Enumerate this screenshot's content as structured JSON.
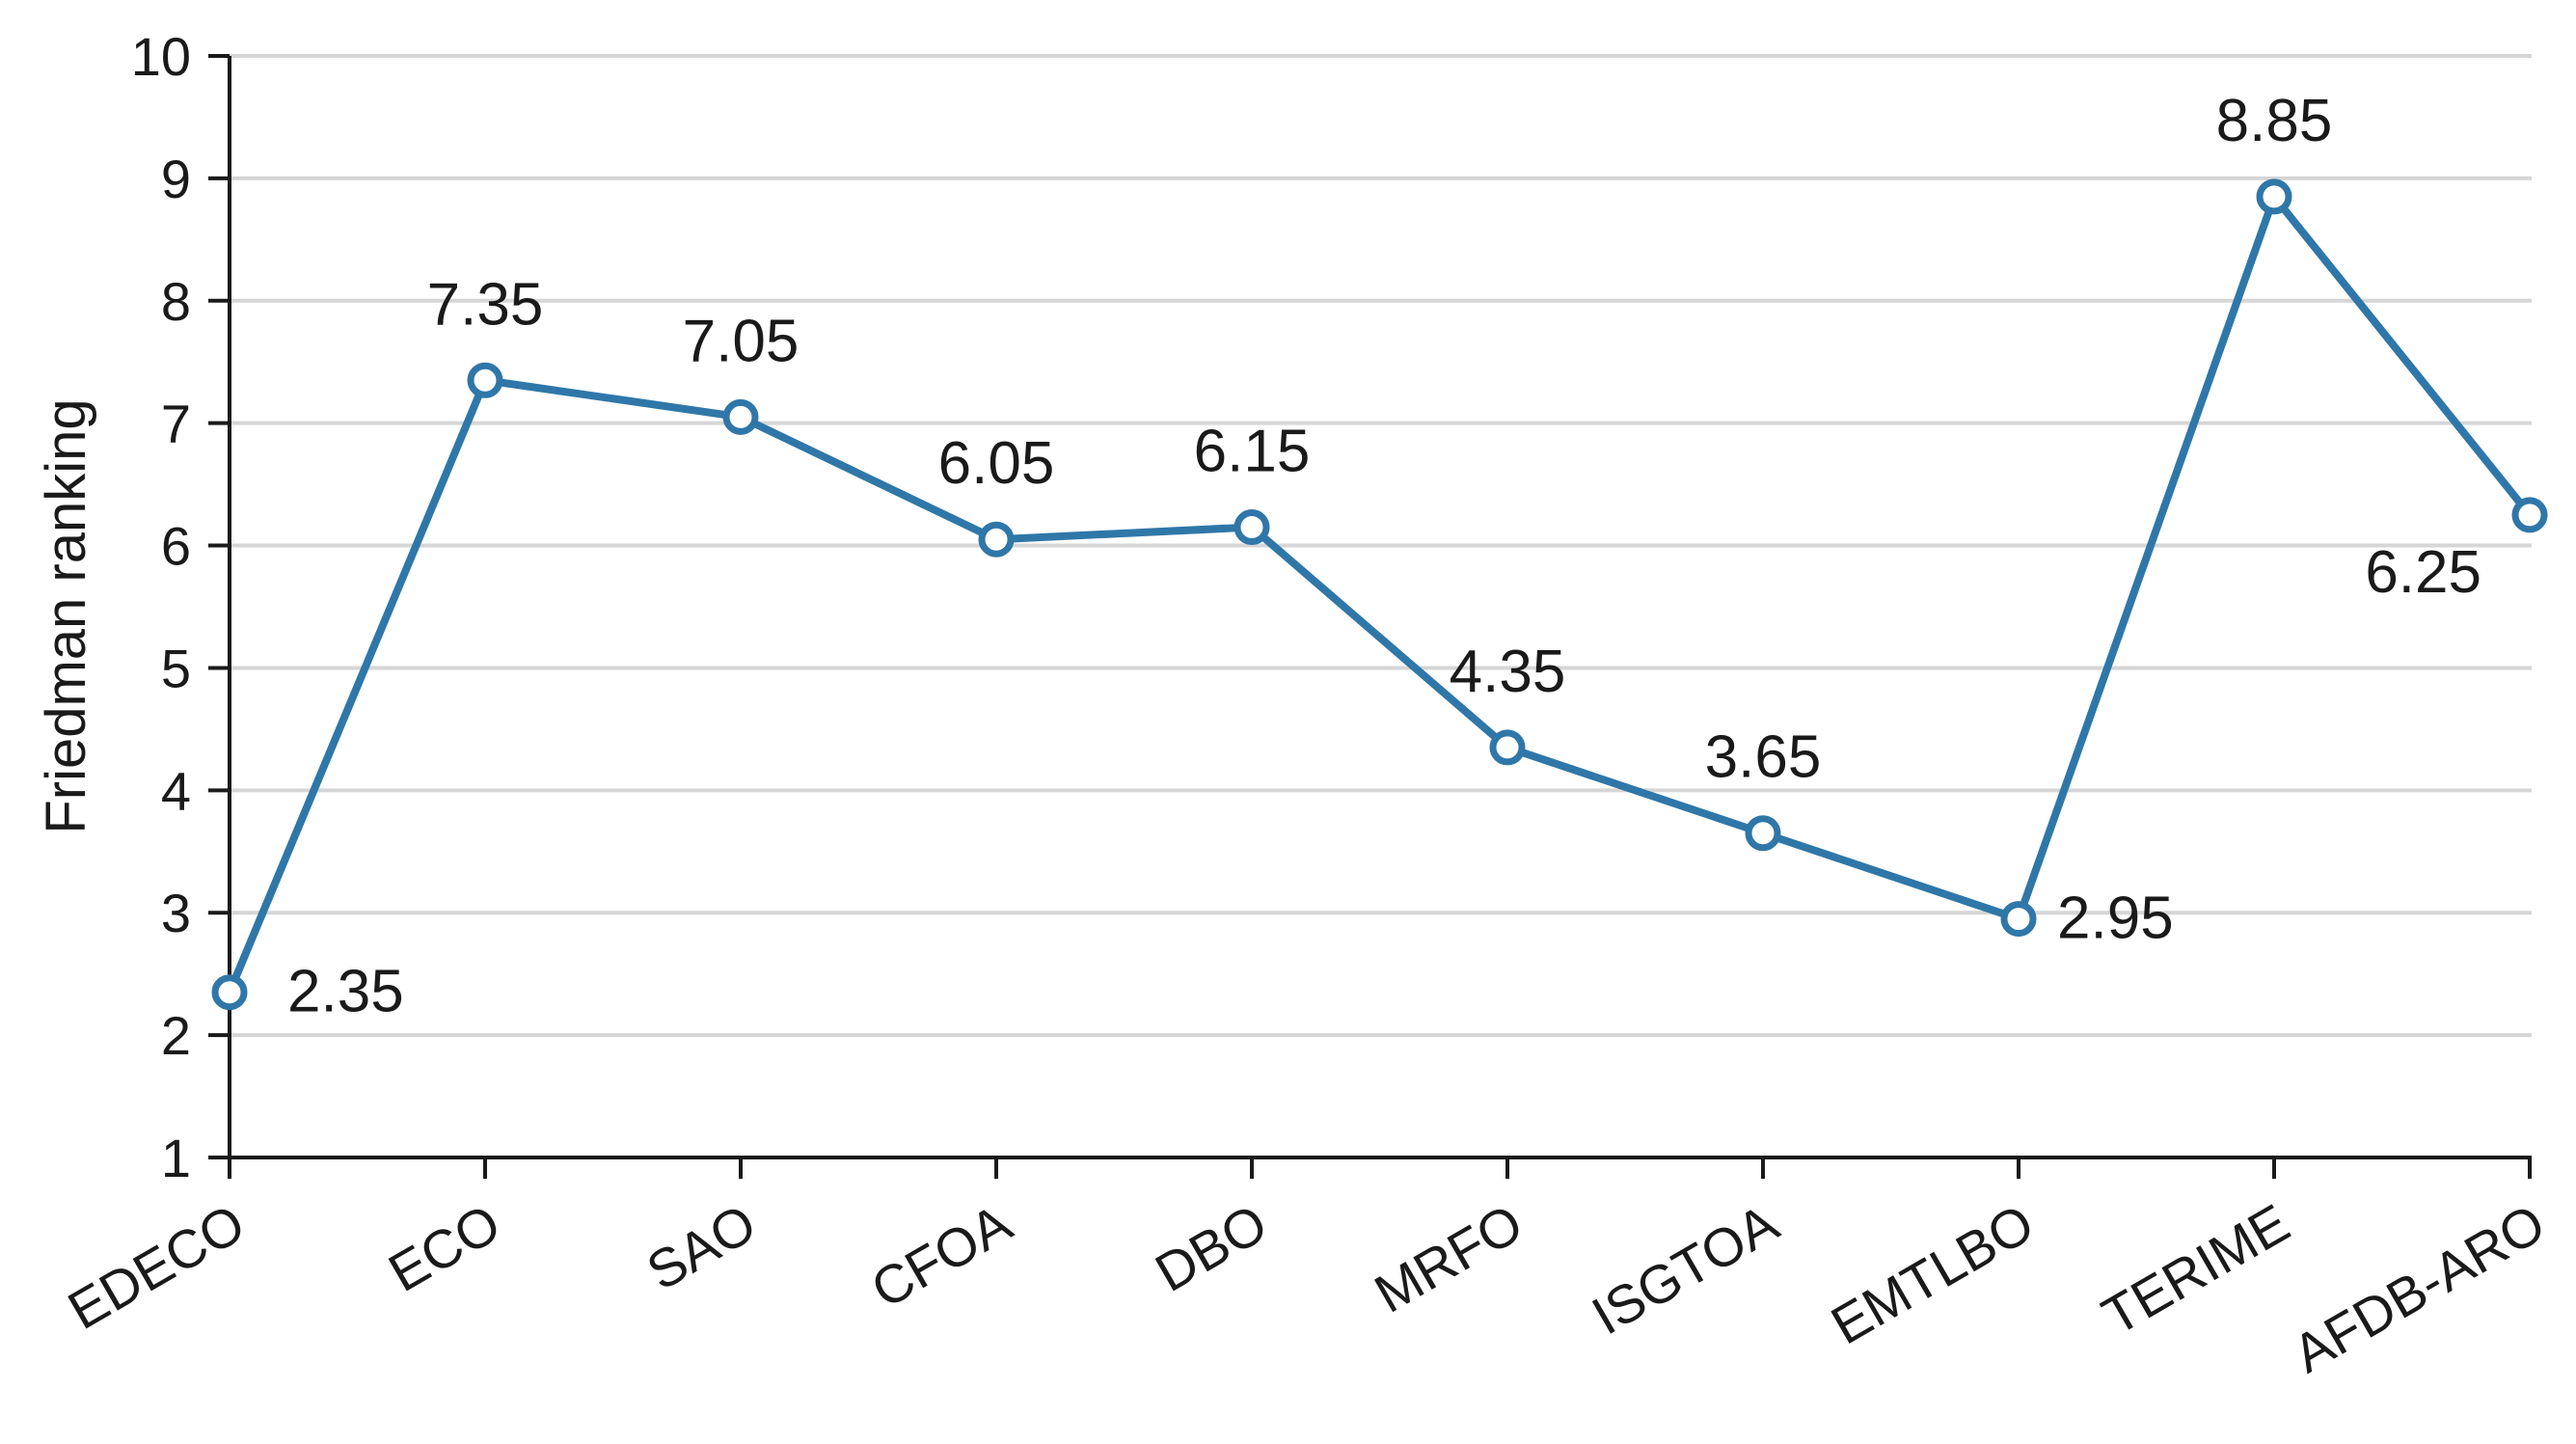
{
  "chart_data": {
    "type": "line",
    "categories": [
      "EDECO",
      "ECO",
      "SAO",
      "CFOA",
      "DBO",
      "MRFO",
      "ISGTOA",
      "EMTLBO",
      "TERIME",
      "AFDB-ARO"
    ],
    "series": [
      {
        "values": [
          2.35,
          7.35,
          7.05,
          6.05,
          6.15,
          4.35,
          3.65,
          2.95,
          8.85,
          6.25
        ],
        "labels": [
          "2.35",
          "7.35",
          "7.05",
          "6.05",
          "6.15",
          "4.35",
          "3.65",
          "2.95",
          "8.85",
          "6.25"
        ],
        "color": "#2f77a8"
      }
    ],
    "ylabel": "Friedman ranking",
    "xlabel": "",
    "ylim": [
      1,
      10
    ],
    "yticks": [
      "1",
      "2",
      "3",
      "4",
      "5",
      "6",
      "7",
      "8",
      "9",
      "10"
    ],
    "grid": true,
    "legend": "none"
  }
}
